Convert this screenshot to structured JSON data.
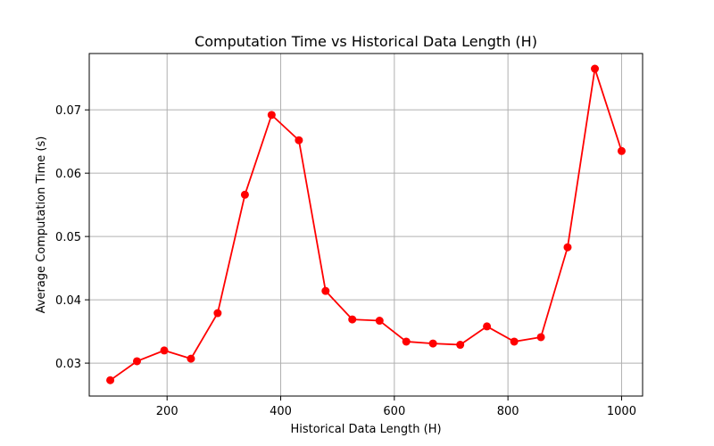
{
  "chart_data": {
    "type": "line",
    "title": "Computation Time vs Historical Data Length (H)",
    "xlabel": "Historical Data Length (H)",
    "ylabel": "Average Computation Time (s)",
    "xlim": [
      63,
      1037
    ],
    "ylim": [
      0.0248,
      0.0789
    ],
    "xticks": [
      200,
      400,
      600,
      800,
      1000
    ],
    "xtick_labels": [
      "200",
      "400",
      "600",
      "800",
      "1000"
    ],
    "yticks": [
      0.03,
      0.04,
      0.05,
      0.06,
      0.07
    ],
    "ytick_labels": [
      "0.03",
      "0.04",
      "0.05",
      "0.06",
      "0.07"
    ],
    "grid": true,
    "series": [
      {
        "color": "#ff0000",
        "marker": "circle",
        "x": [
          100,
          147,
          195,
          242,
          289,
          337,
          384,
          432,
          479,
          526,
          574,
          621,
          668,
          716,
          763,
          811,
          858,
          905,
          953,
          1000
        ],
        "y": [
          0.0273,
          0.0303,
          0.032,
          0.0307,
          0.0379,
          0.0566,
          0.0692,
          0.0652,
          0.0414,
          0.0369,
          0.0367,
          0.0334,
          0.0331,
          0.0329,
          0.0358,
          0.0334,
          0.0341,
          0.0483,
          0.0765,
          0.0635
        ]
      }
    ]
  }
}
